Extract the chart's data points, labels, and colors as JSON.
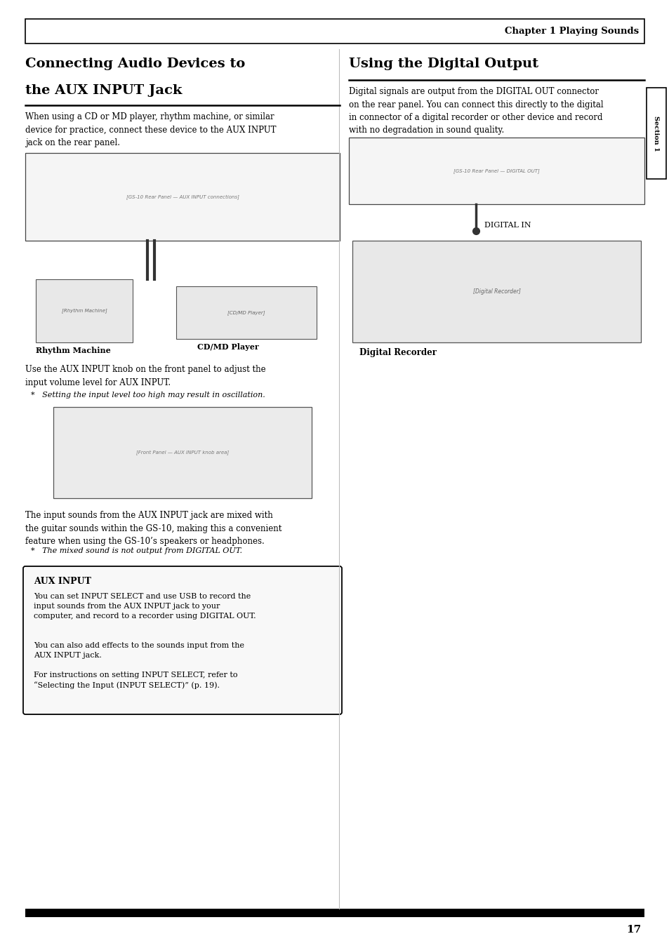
{
  "page_width": 9.54,
  "page_height": 13.51,
  "dpi": 100,
  "bg_color": "#ffffff",
  "header_text": "Chapter 1 Playing Sounds",
  "page_number": "17",
  "section_label": "Section 1",
  "left_title_line1": "Connecting Audio Devices to",
  "left_title_line2": "the AUX INPUT Jack",
  "left_body1": "When using a CD or MD player, rhythm machine, or similar\ndevice for practice, connect these device to the AUX INPUT\njack on the rear panel.",
  "left_caption1": "Rhythm Machine",
  "left_caption2": "CD/MD Player",
  "left_body2": "Use the AUX INPUT knob on the front panel to adjust the\ninput volume level for AUX INPUT.",
  "left_note1": "*   Setting the input level too high may result in oscillation.",
  "left_body3": "The input sounds from the AUX INPUT jack are mixed with\nthe guitar sounds within the GS-10, making this a convenient\nfeature when using the GS-10’s speakers or headphones.",
  "left_note2": "*   The mixed sound is not output from DIGITAL OUT.",
  "aux_title": "AUX INPUT",
  "aux_text1": "You can set INPUT SELECT and use USB to record the\ninput sounds from the AUX INPUT jack to your\ncomputer, and record to a recorder using DIGITAL OUT.",
  "aux_text2": "You can also add effects to the sounds input from the\nAUX INPUT jack.",
  "aux_text3": "For instructions on setting INPUT SELECT, refer to\n“Selecting the Input (INPUT SELECT)” (p. 19).",
  "right_title": "Using the Digital Output",
  "right_body1": "Digital signals are output from the DIGITAL OUT connector\non the rear panel. You can connect this directly to the digital\nin connector of a digital recorder or other device and record\nwith no degradation in sound quality.",
  "right_din_label": "DIGITAL IN",
  "right_recorder_label": "Digital Recorder"
}
